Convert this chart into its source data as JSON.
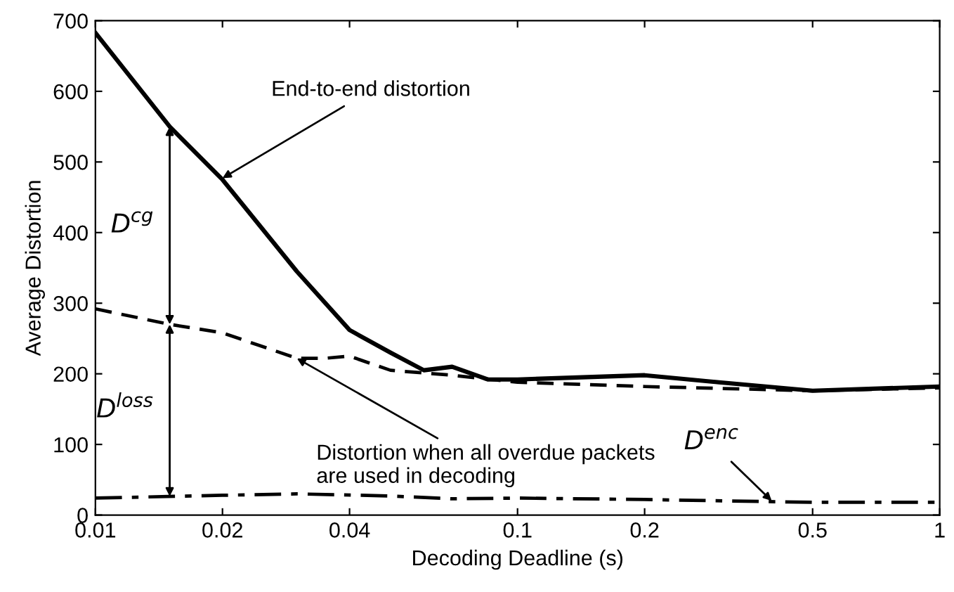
{
  "chart_data": {
    "type": "line",
    "xlabel": "Decoding Deadline (s)",
    "ylabel": "Average Distortion",
    "log": "x",
    "xlim": [
      0.01,
      1
    ],
    "xticks": [
      0.01,
      0.02,
      0.04,
      0.1,
      0.2,
      0.5,
      1
    ],
    "ylim": [
      0,
      700
    ],
    "yticks": [
      0,
      100,
      200,
      300,
      400,
      500,
      600,
      700
    ],
    "grid": false,
    "legend": false,
    "series": [
      {
        "color": "#000000",
        "line_style": "solid",
        "x": [
          0.01,
          0.015,
          0.02,
          0.03,
          0.04,
          0.05,
          0.06,
          0.07,
          0.085,
          0.1,
          0.2,
          0.3,
          0.5,
          1
        ],
        "values": [
          683,
          550,
          475,
          345,
          262,
          230,
          205,
          210,
          192,
          192,
          198,
          188,
          176,
          182
        ]
      },
      {
        "color": "#000000",
        "line_style": "dashed",
        "x": [
          0.01,
          0.015,
          0.02,
          0.03,
          0.035,
          0.04,
          0.05,
          0.07,
          0.1,
          0.2,
          0.5,
          1
        ],
        "values": [
          292,
          270,
          258,
          222,
          222,
          225,
          205,
          198,
          188,
          182,
          176,
          180
        ]
      },
      {
        "color": "#000000",
        "line_style": "dashdot",
        "x": [
          0.01,
          0.02,
          0.03,
          0.05,
          0.07,
          0.1,
          0.2,
          0.5,
          1
        ],
        "values": [
          24,
          28,
          30,
          27,
          23,
          24,
          22,
          18,
          18
        ]
      }
    ],
    "annotations": [
      {
        "text": "End-to-end distortion",
        "x": 0.02,
        "y": 477
      },
      "D$^{cg}$",
      "D$^{loss}$",
      {
        "text": "Distortion when all overdue packets\nare used in decoding",
        "x": 0.03,
        "y": 222
      },
      {
        "text": "D$^{enc}$",
        "x": 0.4,
        "y": 20
      }
    ]
  }
}
